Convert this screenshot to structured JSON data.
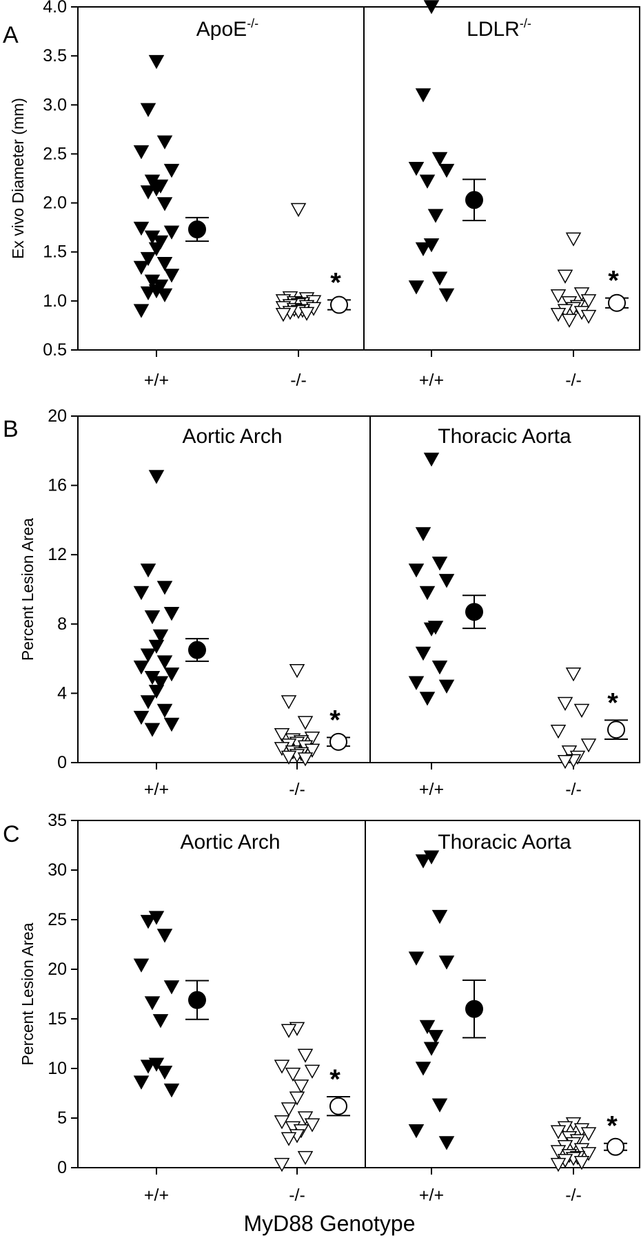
{
  "figure": {
    "x_axis_label": "MyD88 Genotype"
  },
  "chart_data": [
    {
      "panel": "A",
      "type": "scatter",
      "ylabel": "Ex vivo Diameter (mm)",
      "ylim": [
        0.5,
        4.0
      ],
      "yticks": [
        "0.5",
        "1.0",
        "1.5",
        "2.0",
        "2.5",
        "3.0",
        "3.5",
        "4.0"
      ],
      "tick_values": [
        0.5,
        1.0,
        1.5,
        2.0,
        2.5,
        3.0,
        3.5,
        4.0
      ],
      "subpanels": [
        {
          "title": "ApoE",
          "title_sup": "-/-",
          "groups": [
            {
              "genotype": "+/+",
              "filled": true,
              "values": [
                3.44,
                2.95,
                2.62,
                2.52,
                2.33,
                2.22,
                2.17,
                2.14,
                2.11,
                1.99,
                1.74,
                1.7,
                1.65,
                1.6,
                1.53,
                1.43,
                1.38,
                1.34,
                1.26,
                1.2,
                1.15,
                1.1,
                1.08,
                1.06,
                0.9
              ],
              "mean": 1.73,
              "sem": 0.12
            },
            {
              "genotype": "-/-",
              "filled": false,
              "values": [
                1.93,
                1.03,
                1.02,
                1.0,
                0.99,
                0.98,
                0.97,
                0.96,
                0.95,
                0.94,
                0.93,
                0.92,
                0.91,
                0.9,
                0.89,
                0.88,
                0.87,
                0.86
              ],
              "mean": 0.96,
              "sem": 0.05,
              "significant": "*"
            }
          ]
        },
        {
          "title": "LDLR",
          "title_sup": "-/-",
          "groups": [
            {
              "genotype": "+/+",
              "filled": true,
              "values": [
                4.0,
                3.1,
                2.45,
                2.35,
                2.33,
                2.22,
                1.87,
                1.57,
                1.53,
                1.23,
                1.14,
                1.06
              ],
              "mean": 2.03,
              "sem": 0.21
            },
            {
              "genotype": "-/-",
              "filled": false,
              "values": [
                1.63,
                1.25,
                1.07,
                1.05,
                1.0,
                0.98,
                0.94,
                0.92,
                0.9,
                0.88,
                0.86,
                0.84,
                0.8
              ],
              "mean": 0.98,
              "sem": 0.05,
              "significant": "*"
            }
          ]
        }
      ]
    },
    {
      "panel": "B",
      "type": "scatter",
      "ylabel": "Percent Lesion Area",
      "ylim": [
        0,
        20
      ],
      "yticks": [
        "0",
        "4",
        "8",
        "12",
        "16",
        "20"
      ],
      "tick_values": [
        0,
        4,
        8,
        12,
        16,
        20
      ],
      "subpanels": [
        {
          "title": "Aortic Arch",
          "groups": [
            {
              "genotype": "+/+",
              "filled": true,
              "values": [
                16.5,
                11.1,
                10.1,
                9.8,
                8.6,
                8.4,
                7.3,
                6.7,
                6.2,
                5.8,
                5.5,
                5.1,
                4.9,
                4.6,
                4.1,
                3.5,
                3.0,
                2.6,
                2.2,
                1.9
              ],
              "mean": 6.5,
              "sem": 0.65
            },
            {
              "genotype": "-/-",
              "filled": false,
              "values": [
                5.3,
                3.5,
                2.3,
                1.6,
                1.4,
                1.3,
                1.2,
                1.1,
                1.0,
                0.9,
                0.8,
                0.7,
                0.6,
                0.5,
                0.4,
                0.3,
                0.2
              ],
              "mean": 1.2,
              "sem": 0.25,
              "significant": "*"
            }
          ]
        },
        {
          "title": "Thoracic Aorta",
          "groups": [
            {
              "genotype": "+/+",
              "filled": true,
              "values": [
                17.5,
                13.2,
                11.5,
                11.1,
                10.5,
                9.8,
                7.8,
                7.7,
                6.3,
                5.5,
                4.6,
                4.4,
                3.7
              ],
              "mean": 8.7,
              "sem": 0.95
            },
            {
              "genotype": "-/-",
              "filled": false,
              "values": [
                5.1,
                3.4,
                3.0,
                1.8,
                1.0,
                0.6,
                0.3,
                0.1,
                0.05
              ],
              "mean": 1.9,
              "sem": 0.55,
              "significant": "*"
            }
          ]
        }
      ]
    },
    {
      "panel": "C",
      "type": "scatter",
      "ylabel": "Percent Lesion Area",
      "ylim": [
        0,
        35
      ],
      "yticks": [
        "0",
        "5",
        "10",
        "15",
        "20",
        "25",
        "30",
        "35"
      ],
      "tick_values": [
        0,
        5,
        10,
        15,
        20,
        25,
        30,
        35
      ],
      "subpanels": [
        {
          "title": "Aortic Arch",
          "groups": [
            {
              "genotype": "+/+",
              "filled": true,
              "values": [
                25.2,
                24.8,
                23.4,
                20.4,
                18.2,
                16.6,
                14.8,
                10.4,
                10.2,
                9.6,
                8.6,
                7.8
              ],
              "mean": 16.9,
              "sem": 1.95
            },
            {
              "genotype": "-/-",
              "filled": false,
              "values": [
                14.0,
                13.8,
                11.3,
                10.2,
                9.7,
                9.4,
                8.2,
                7.0,
                5.9,
                5.0,
                4.6,
                4.3,
                4.0,
                3.7,
                3.2,
                2.9,
                1.0,
                0.3
              ],
              "mean": 6.2,
              "sem": 0.95,
              "significant": "*"
            }
          ]
        },
        {
          "title": "Thoracic Aorta",
          "groups": [
            {
              "genotype": "+/+",
              "filled": true,
              "values": [
                31.3,
                30.9,
                25.3,
                21.1,
                20.7,
                14.2,
                13.2,
                12.0,
                10.0,
                6.3,
                3.7,
                2.5
              ],
              "mean": 16.0,
              "sem": 2.9
            },
            {
              "genotype": "-/-",
              "filled": false,
              "values": [
                4.4,
                4.0,
                3.8,
                3.6,
                3.4,
                3.0,
                2.7,
                2.4,
                2.1,
                1.8,
                1.6,
                1.4,
                1.2,
                1.0,
                0.9,
                0.7,
                0.5,
                0.3
              ],
              "mean": 2.1,
              "sem": 0.35,
              "significant": "*"
            }
          ]
        }
      ]
    }
  ]
}
